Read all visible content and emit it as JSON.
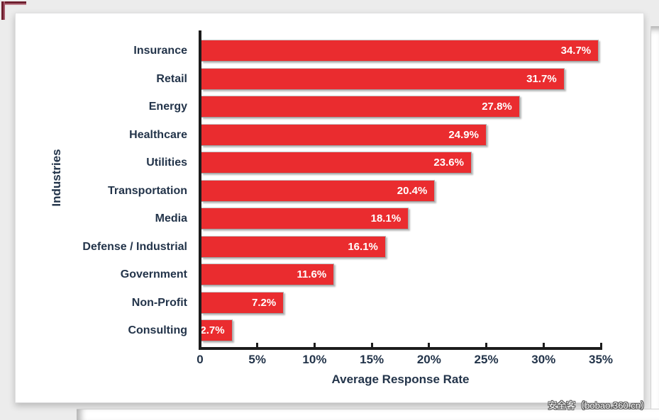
{
  "page": {
    "watermark": "安全客（bobao.360.cn）"
  },
  "chart_data": {
    "type": "bar",
    "orientation": "horizontal",
    "title": "",
    "xlabel": "Average Response Rate",
    "ylabel": "Industries",
    "categories": [
      "Insurance",
      "Retail",
      "Energy",
      "Healthcare",
      "Utilities",
      "Transportation",
      "Media",
      "Defense / Industrial",
      "Government",
      "Non-Profit",
      "Consulting"
    ],
    "values": [
      34.7,
      31.7,
      27.8,
      24.9,
      23.6,
      20.4,
      18.1,
      16.1,
      11.6,
      7.2,
      2.7
    ],
    "value_labels": [
      "34.7%",
      "31.7%",
      "27.8%",
      "24.9%",
      "23.6%",
      "20.4%",
      "18.1%",
      "16.1%",
      "11.6%",
      "7.2%",
      "2.7%"
    ],
    "xlim": [
      0,
      35
    ],
    "x_ticks": [
      {
        "value": 0,
        "label": "0"
      },
      {
        "value": 5,
        "label": "5%"
      },
      {
        "value": 10,
        "label": "10%"
      },
      {
        "value": 15,
        "label": "15%"
      },
      {
        "value": 20,
        "label": "20%"
      },
      {
        "value": 25,
        "label": "25%"
      },
      {
        "value": 30,
        "label": "30%"
      },
      {
        "value": 35,
        "label": "35%"
      }
    ],
    "grid": false,
    "legend": false,
    "bar_color": "#ea2c2f",
    "label_color": "#23344a",
    "axis_color": "#1c1c1c"
  }
}
